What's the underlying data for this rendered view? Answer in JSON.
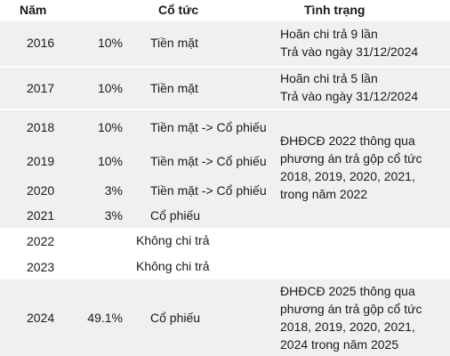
{
  "headers": {
    "year": "Năm",
    "dividend": "Cổ tức",
    "status": "Tình trạng"
  },
  "colors": {
    "band": "#f0f0f0",
    "text": "#1a1a1a"
  },
  "rows": [
    {
      "year": "2016",
      "rate": "10%",
      "type": "Tiền mặt",
      "status": [
        "Hoãn chi trả 9 lần",
        "Trả vào ngày 31/12/2024"
      ]
    },
    {
      "year": "2017",
      "rate": "10%",
      "type": "Tiền mặt",
      "status": [
        "Hoãn chi trả 5 lần",
        "Trả vào ngày 31/12/2024"
      ]
    },
    {
      "year": "2018",
      "rate": "10%",
      "type": "Tiền mặt -> Cổ phiếu"
    },
    {
      "year": "2019",
      "rate": "10%",
      "type": "Tiền mặt -> Cổ phiếu"
    },
    {
      "year": "2020",
      "rate": "3%",
      "type": "Tiền mặt -> Cổ phiếu"
    },
    {
      "year": "2021",
      "rate": "3%",
      "type": "Cổ phiếu"
    },
    {
      "year": "2022",
      "rate": "",
      "type": "Không chi trả"
    },
    {
      "year": "2023",
      "rate": "",
      "type": "Không chi trả"
    },
    {
      "year": "2024",
      "rate": "49.1%",
      "type": "Cổ phiếu",
      "status": [
        "ĐHĐCĐ 2025 thông qua",
        "phương án trả gộp cổ tức",
        "2018, 2019, 2020, 2021,",
        "2024 trong năm 2025"
      ]
    }
  ],
  "group_status": [
    "ĐHĐCĐ 2022 thông qua",
    "phương án trả gộp cổ tức",
    "2018, 2019, 2020, 2021,",
    "trong năm 2022"
  ]
}
